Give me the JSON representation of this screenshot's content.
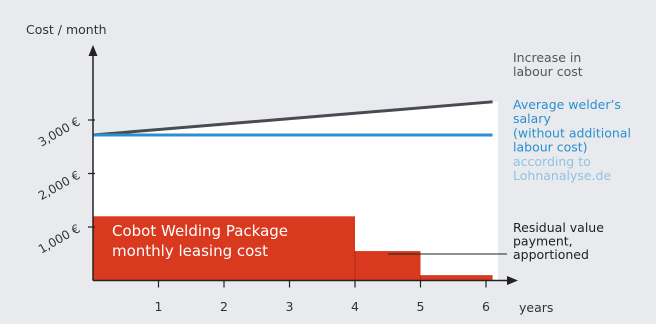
{
  "colors": {
    "background": "#e8eaed",
    "plot_area": "#ffffff",
    "bar": "#d93a1f",
    "increase_line": "#4a4a55",
    "salary_line": "#2a8fd0",
    "source_text": "#8fc3e6",
    "axis": "#222222",
    "text": "#333333",
    "bar_text": "#ffffff"
  },
  "chart_data": {
    "type": "bar",
    "ylabel": "Cost / month",
    "xlabel": "years",
    "xlim": [
      0,
      6.2
    ],
    "ylim": [
      0,
      3400
    ],
    "x_ticks": [
      1,
      2,
      3,
      4,
      5,
      6
    ],
    "x_tick_labels": [
      "1",
      "2",
      "3",
      "4",
      "5",
      "6"
    ],
    "y_ticks": [
      1000,
      2000,
      3000
    ],
    "y_tick_labels": [
      "1,000 €",
      "2,000 €",
      "3,000 €"
    ],
    "bars": [
      {
        "x0": 0,
        "x1": 4,
        "value": 1200
      },
      {
        "x0": 4,
        "x1": 5,
        "value": 550
      },
      {
        "x0": 5,
        "x1": 6.1,
        "value": 100
      }
    ],
    "lines": [
      {
        "key": "increase",
        "points": [
          [
            0,
            2720
          ],
          [
            6.1,
            3340
          ]
        ]
      },
      {
        "key": "salary",
        "points": [
          [
            0,
            2720
          ],
          [
            6.1,
            2720
          ]
        ]
      }
    ],
    "annotations": {
      "increase": [
        "Increase in",
        "labour cost"
      ],
      "salary": [
        "Average welder’s",
        "salary",
        "(without additional",
        "labour cost)"
      ],
      "source": [
        "according to",
        "Lohnanalyse.de"
      ],
      "residual": [
        "Residual value",
        "payment,",
        "apportioned"
      ],
      "bar_label": [
        "Cobot Welding Package",
        "monthly leasing cost"
      ]
    },
    "grid": false
  }
}
